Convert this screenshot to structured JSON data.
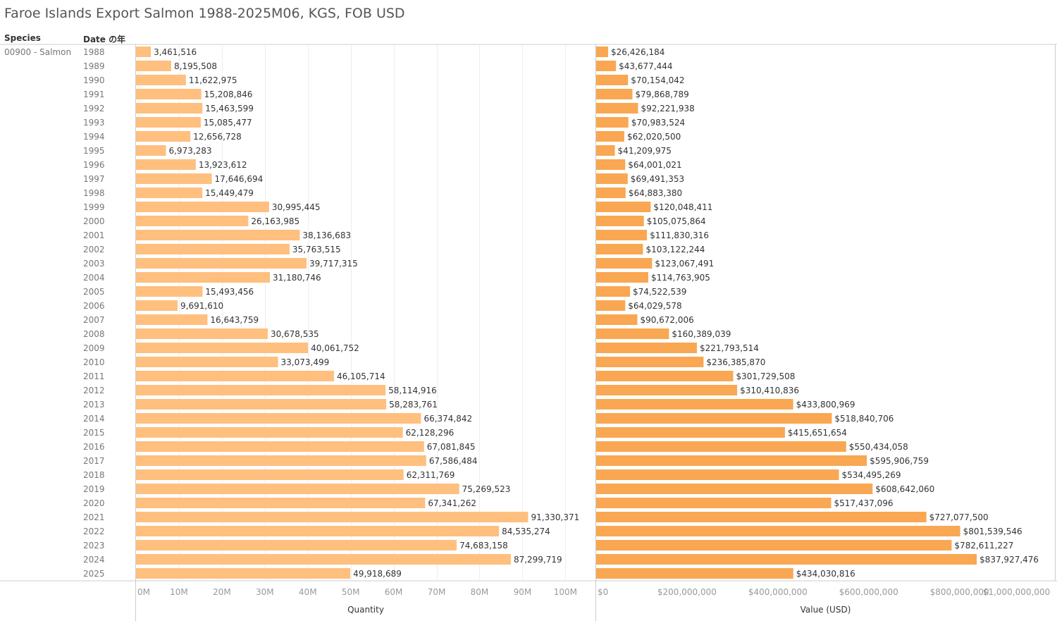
{
  "title": "Faroe Islands Export Salmon 1988-2025M06, KGS, FOB USD",
  "headers": {
    "species": "Species",
    "date": "Date の年"
  },
  "species_value": "00900 - Salmon",
  "colors": {
    "quantity_bar": "#ffbf7f",
    "value_bar": "#f9a752",
    "grid": "#eeeeee",
    "axis": "#cccccc"
  },
  "chart_data": [
    {
      "type": "bar",
      "orientation": "horizontal",
      "xlabel": "Quantity",
      "xlim": [
        0,
        107000000
      ],
      "ticks": [
        0,
        10000000,
        20000000,
        30000000,
        40000000,
        50000000,
        60000000,
        70000000,
        80000000,
        90000000,
        100000000
      ],
      "tick_labels": [
        "0M",
        "10M",
        "20M",
        "30M",
        "40M",
        "50M",
        "60M",
        "70M",
        "80M",
        "90M",
        "100M"
      ],
      "grid": true,
      "categories": [
        "1988",
        "1989",
        "1990",
        "1991",
        "1992",
        "1993",
        "1994",
        "1995",
        "1996",
        "1997",
        "1998",
        "1999",
        "2000",
        "2001",
        "2002",
        "2003",
        "2004",
        "2005",
        "2006",
        "2007",
        "2008",
        "2009",
        "2010",
        "2011",
        "2012",
        "2013",
        "2014",
        "2015",
        "2016",
        "2017",
        "2018",
        "2019",
        "2020",
        "2021",
        "2022",
        "2023",
        "2024",
        "2025"
      ],
      "values": [
        3461516,
        8195508,
        11622975,
        15208846,
        15463599,
        15085477,
        12656728,
        6973283,
        13923612,
        17646694,
        15449479,
        30995445,
        26163985,
        38136683,
        35763515,
        39717315,
        31180746,
        15493456,
        9691610,
        16643759,
        30678535,
        40061752,
        33073499,
        46105714,
        58114916,
        58283761,
        66374842,
        62128296,
        67081845,
        67586484,
        62311769,
        75269523,
        67341262,
        91330371,
        84535274,
        74683158,
        87299719,
        49918689
      ],
      "data_labels": [
        "3,461,516",
        "8,195,508",
        "11,622,975",
        "15,208,846",
        "15,463,599",
        "15,085,477",
        "12,656,728",
        "6,973,283",
        "13,923,612",
        "17,646,694",
        "15,449,479",
        "30,995,445",
        "26,163,985",
        "38,136,683",
        "35,763,515",
        "39,717,315",
        "31,180,746",
        "15,493,456",
        "9,691,610",
        "16,643,759",
        "30,678,535",
        "40,061,752",
        "33,073,499",
        "46,105,714",
        "58,114,916",
        "58,283,761",
        "66,374,842",
        "62,128,296",
        "67,081,845",
        "67,586,484",
        "62,311,769",
        "75,269,523",
        "67,341,262",
        "91,330,371",
        "84,535,274",
        "74,683,158",
        "87,299,719",
        "49,918,689"
      ]
    },
    {
      "type": "bar",
      "orientation": "horizontal",
      "xlabel": "Value (USD)",
      "xlim": [
        0,
        1010000000
      ],
      "ticks": [
        0,
        200000000,
        400000000,
        600000000,
        800000000,
        1000000000
      ],
      "tick_labels": [
        "$0",
        "$200,000,000",
        "$400,000,000",
        "$600,000,000",
        "$800,000,000",
        "$1,000,000,000"
      ],
      "grid": false,
      "categories": [
        "1988",
        "1989",
        "1990",
        "1991",
        "1992",
        "1993",
        "1994",
        "1995",
        "1996",
        "1997",
        "1998",
        "1999",
        "2000",
        "2001",
        "2002",
        "2003",
        "2004",
        "2005",
        "2006",
        "2007",
        "2008",
        "2009",
        "2010",
        "2011",
        "2012",
        "2013",
        "2014",
        "2015",
        "2016",
        "2017",
        "2018",
        "2019",
        "2020",
        "2021",
        "2022",
        "2023",
        "2024",
        "2025"
      ],
      "values": [
        26426184,
        43677444,
        70154042,
        79868789,
        92221938,
        70983524,
        62020500,
        41209975,
        64001021,
        69491353,
        64883380,
        120048411,
        105075864,
        111830316,
        103122244,
        123067491,
        114763905,
        74522539,
        64029578,
        90672006,
        160389039,
        221793514,
        236385870,
        301729508,
        310410836,
        433800969,
        518840706,
        415651654,
        550434058,
        595906759,
        534495269,
        608642060,
        517437096,
        727077500,
        801539546,
        782611227,
        837927476,
        434030816
      ],
      "data_labels": [
        "$26,426,184",
        "$43,677,444",
        "$70,154,042",
        "$79,868,789",
        "$92,221,938",
        "$70,983,524",
        "$62,020,500",
        "$41,209,975",
        "$64,001,021",
        "$69,491,353",
        "$64,883,380",
        "$120,048,411",
        "$105,075,864",
        "$111,830,316",
        "$103,122,244",
        "$123,067,491",
        "$114,763,905",
        "$74,522,539",
        "$64,029,578",
        "$90,672,006",
        "$160,389,039",
        "$221,793,514",
        "$236,385,870",
        "$301,729,508",
        "$310,410,836",
        "$433,800,969",
        "$518,840,706",
        "$415,651,654",
        "$550,434,058",
        "$595,906,759",
        "$534,495,269",
        "$608,642,060",
        "$517,437,096",
        "$727,077,500",
        "$801,539,546",
        "$782,611,227",
        "$837,927,476",
        "$434,030,816"
      ]
    }
  ]
}
